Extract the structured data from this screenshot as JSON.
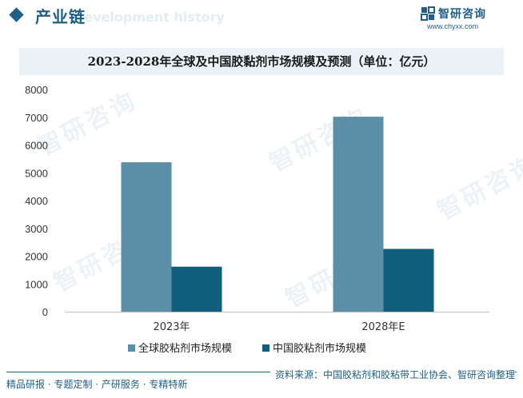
{
  "header": {
    "section_title": "产业链",
    "watermark": "Development history",
    "brand_name": "智研咨询",
    "brand_url": "www.chyxx.com"
  },
  "watermark_text": "智研咨询",
  "footer": {
    "left": "精品研报 · 专题定制 · 产研服务 · 专精特新",
    "right": "资料来源：中国胶粘剂和胶粘带工业协会、智研咨询整理"
  },
  "colors": {
    "accent": "#1f5f86",
    "series_1": "#5b8fa8",
    "series_2": "#0f5e7c"
  },
  "chart_data": {
    "type": "bar",
    "title": "2023-2028年全球及中国胶黏剂市场规模及预测（单位：亿元）",
    "categories": [
      "2023年",
      "2028年E"
    ],
    "series": [
      {
        "name": "全球胶粘剂市场规模",
        "values": [
          5380,
          7020
        ]
      },
      {
        "name": "中国胶粘剂市场规模",
        "values": [
          1620,
          2260
        ]
      }
    ],
    "ylim": [
      0,
      8000
    ],
    "yticks": [
      0,
      1000,
      2000,
      3000,
      4000,
      5000,
      6000,
      7000,
      8000
    ],
    "legend": "bottom",
    "grid": false
  }
}
